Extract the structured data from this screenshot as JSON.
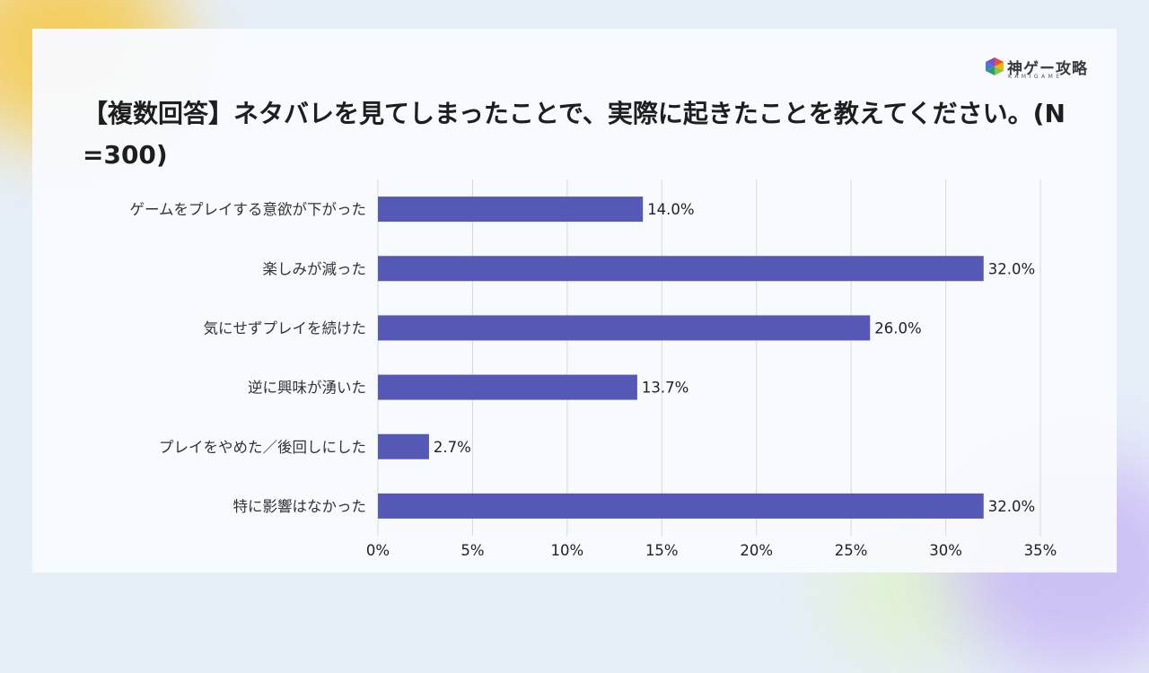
{
  "header": {
    "logo_text": "神ゲー攻略",
    "logo_sub": "KAMIGAME",
    "title": "【複数回答】ネタバレを見てしまったことで、実際に起きたことを教えてください。(N=300)"
  },
  "chart_data": {
    "type": "bar",
    "orientation": "horizontal",
    "title": "【複数回答】ネタバレを見てしまったことで、実際に起きたことを教えてください。(N=300)",
    "categories": [
      "ゲームをプレイする意欲が下がった",
      "楽しみが減った",
      "気にせずプレイを続けた",
      "逆に興味が湧いた",
      "プレイをやめた／後回しにした",
      "特に影響はなかった"
    ],
    "values": [
      14.0,
      32.0,
      26.0,
      13.7,
      2.7,
      32.0
    ],
    "value_labels": [
      "14.0%",
      "32.0%",
      "26.0%",
      "13.7%",
      "2.7%",
      "32.0%"
    ],
    "xlim": [
      0,
      35
    ],
    "xticks": [
      0,
      5,
      10,
      15,
      20,
      25,
      30,
      35
    ],
    "xtick_labels": [
      "0%",
      "5%",
      "10%",
      "15%",
      "20%",
      "25%",
      "30%",
      "35%"
    ],
    "grid": true,
    "bar_color": "#5658b6"
  }
}
